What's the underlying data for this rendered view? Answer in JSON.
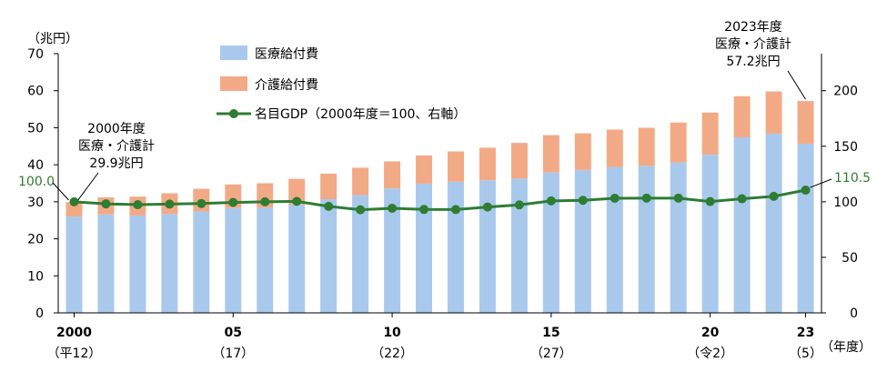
{
  "chart_data": {
    "type": "bar",
    "stacked": true,
    "years": [
      "2000",
      "2001",
      "2002",
      "2003",
      "2004",
      "2005",
      "2006",
      "2007",
      "2008",
      "2009",
      "2010",
      "2011",
      "2012",
      "2013",
      "2014",
      "2015",
      "2016",
      "2017",
      "2018",
      "2019",
      "2020",
      "2021",
      "2022",
      "2023"
    ],
    "x_tick_labels": [
      {
        "index": 0,
        "top": "2000",
        "bottom": "（平12）"
      },
      {
        "index": 5,
        "top": "05",
        "bottom": "（17）"
      },
      {
        "index": 10,
        "top": "10",
        "bottom": "（22）"
      },
      {
        "index": 15,
        "top": "15",
        "bottom": "（27）"
      },
      {
        "index": 20,
        "top": "20",
        "bottom": "（令2）"
      },
      {
        "index": 23,
        "top": "23",
        "bottom": "（5）"
      }
    ],
    "xlabel": "（年度）",
    "ylabel_left": "（兆円）",
    "ylim_left": [
      0,
      70
    ],
    "yticks_left": [
      0,
      10,
      20,
      30,
      40,
      50,
      60,
      70
    ],
    "ylim_right": [
      0,
      233.33
    ],
    "yticks_right": [
      0,
      50,
      100,
      150,
      200
    ],
    "series": [
      {
        "name": "医療給付費",
        "color": "#a9c9ec",
        "values": [
          26.0,
          26.6,
          26.3,
          26.7,
          27.4,
          28.3,
          28.4,
          29.2,
          30.7,
          31.8,
          33.6,
          34.9,
          35.4,
          35.8,
          36.3,
          37.9,
          38.6,
          39.4,
          39.7,
          40.6,
          42.7,
          47.4,
          48.4,
          45.7
        ]
      },
      {
        "name": "介護給付費",
        "color": "#f2aa86",
        "values": [
          3.9,
          4.6,
          5.1,
          5.6,
          6.1,
          6.4,
          6.6,
          7.0,
          6.9,
          7.4,
          7.3,
          7.6,
          8.2,
          8.8,
          9.6,
          10.1,
          9.9,
          10.1,
          10.3,
          10.8,
          11.4,
          11.1,
          11.4,
          11.5
        ]
      },
      {
        "name": "名目GDP（2000年度＝100、右軸）",
        "color": "#2e7d32",
        "axis": "right",
        "values": [
          100.0,
          98.1,
          97.4,
          97.9,
          98.4,
          99.4,
          100.0,
          100.4,
          95.9,
          92.8,
          94.2,
          93.1,
          93.0,
          95.3,
          97.2,
          100.8,
          101.3,
          103.2,
          103.3,
          103.3,
          100.2,
          102.7,
          104.9,
          110.5
        ]
      }
    ],
    "annotations": {
      "first_title": "2000年度",
      "first_line2": "医療・介護計",
      "first_value": "29.9兆円",
      "last_title": "2023年度",
      "last_line2": "医療・介護計",
      "last_value": "57.2兆円",
      "gdp_first": "100.0",
      "gdp_last": "110.5"
    },
    "grid": false,
    "legend_position": "top-left"
  }
}
